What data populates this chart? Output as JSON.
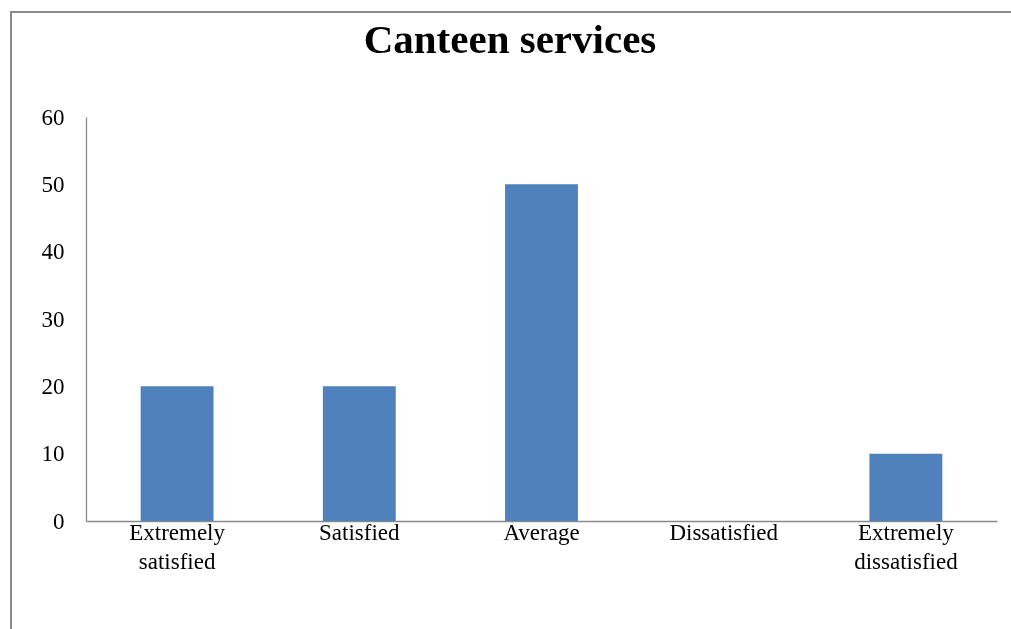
{
  "chart_data": {
    "type": "bar",
    "title": "Canteen services",
    "categories": [
      "Extremely satisfied",
      "Satisfied",
      "Average",
      "Dissatisfied",
      "Extremely dissatisfied"
    ],
    "values": [
      20,
      20,
      50,
      0,
      10
    ],
    "color": "#4f81bd",
    "ylim": [
      0,
      60
    ],
    "yticks": [
      0,
      10,
      20,
      30,
      40,
      50,
      60
    ]
  }
}
